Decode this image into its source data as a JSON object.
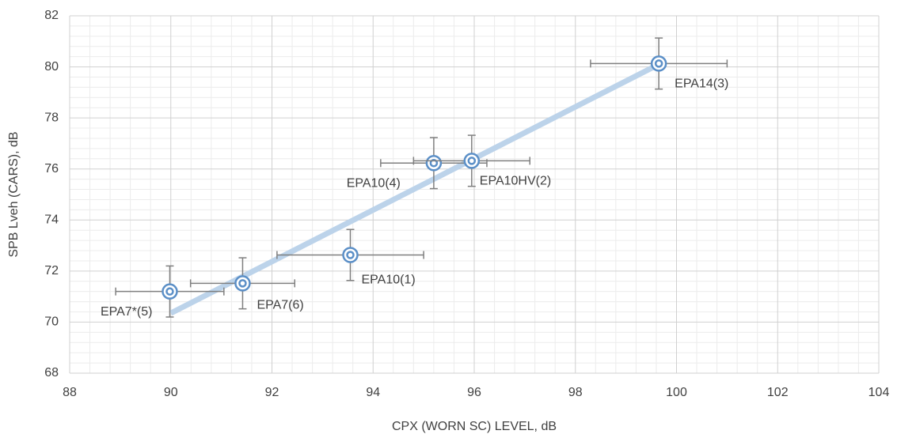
{
  "chart_data": {
    "type": "scatter",
    "x_label": "CPX (WORN SC) LEVEL, dB",
    "y_label": "SPB Lveh (CARS), dB",
    "x": [
      89.98,
      91.42,
      93.55,
      95.2,
      95.95,
      99.65
    ],
    "y": [
      71.2,
      71.52,
      72.63,
      76.23,
      76.32,
      80.13
    ],
    "x_error": [
      1.07,
      1.03,
      1.45,
      1.05,
      1.15,
      1.35
    ],
    "y_error": [
      1.0,
      1.0,
      1.0,
      1.0,
      1.0,
      1.0
    ],
    "point_labels": [
      "EPA7*(5)",
      "EPA7(6)",
      "EPA10(1)",
      "EPA10(4)",
      "EPA10HV(2)",
      "EPA14(3)"
    ],
    "color": "#5b8fc7",
    "error_color": "#7f7f7f",
    "trendline": {
      "x": [
        90,
        99.65
      ],
      "y": [
        70.35,
        80.1
      ],
      "color": "#bcd3ea"
    },
    "xlim": [
      88,
      104
    ],
    "xticks": [
      88,
      90,
      92,
      94,
      96,
      98,
      100,
      102,
      104
    ],
    "ylim": [
      68,
      82
    ],
    "yticks": [
      68,
      70,
      72,
      74,
      76,
      78,
      80,
      82
    ],
    "grid": true,
    "minor_grid": true
  }
}
